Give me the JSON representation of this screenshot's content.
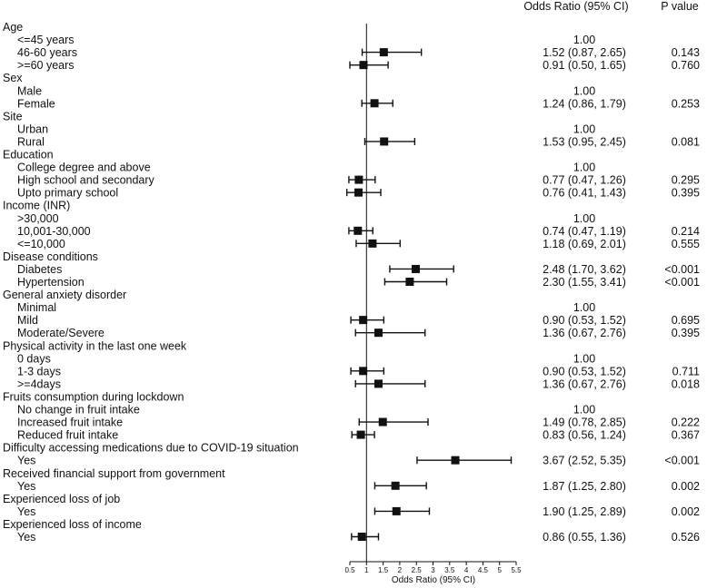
{
  "chart_data": {
    "type": "forest",
    "header_or": "Odds Ratio (95% CI)",
    "header_p": "P value",
    "xlabel": "Odds Ratio (95% CI)",
    "xlim": [
      0.5,
      5.5
    ],
    "xticks": [
      "0.5",
      "1",
      "1.5",
      "2",
      "2.5",
      "3",
      "3.5",
      "4",
      "4.5",
      "5",
      "5.5"
    ],
    "reference_line": 1,
    "rows": [
      {
        "label": "Age",
        "kind": "group"
      },
      {
        "label": "<=45 years",
        "kind": "item",
        "or_text": "1.00",
        "p": ""
      },
      {
        "label": "46-60 years",
        "kind": "item",
        "or": 1.52,
        "lo": 0.87,
        "hi": 2.65,
        "or_text": "1.52 (0.87, 2.65)",
        "p": "0.143"
      },
      {
        "label": ">=60 years",
        "kind": "item",
        "or": 0.91,
        "lo": 0.5,
        "hi": 1.65,
        "or_text": "0.91 (0.50, 1.65)",
        "p": "0.760"
      },
      {
        "label": "Sex",
        "kind": "group"
      },
      {
        "label": "Male",
        "kind": "item",
        "or_text": "1.00",
        "p": ""
      },
      {
        "label": "Female",
        "kind": "item",
        "or": 1.24,
        "lo": 0.86,
        "hi": 1.79,
        "or_text": "1.24 (0.86, 1.79)",
        "p": "0.253"
      },
      {
        "label": "Site",
        "kind": "group"
      },
      {
        "label": "Urban",
        "kind": "item",
        "or_text": "1.00",
        "p": ""
      },
      {
        "label": "Rural",
        "kind": "item",
        "or": 1.53,
        "lo": 0.95,
        "hi": 2.45,
        "or_text": "1.53 (0.95, 2.45)",
        "p": "0.081"
      },
      {
        "label": "Education",
        "kind": "group"
      },
      {
        "label": "College degree and above",
        "kind": "item",
        "or_text": "1.00",
        "p": ""
      },
      {
        "label": "High school and secondary",
        "kind": "item",
        "or": 0.77,
        "lo": 0.47,
        "hi": 1.26,
        "or_text": "0.77 (0.47, 1.26)",
        "p": "0.295"
      },
      {
        "label": "Upto primary school",
        "kind": "item",
        "or": 0.76,
        "lo": 0.41,
        "hi": 1.43,
        "or_text": "0.76 (0.41, 1.43)",
        "p": "0.395"
      },
      {
        "label": "Income (INR)",
        "kind": "group"
      },
      {
        "label": ">30,000",
        "kind": "item",
        "or_text": "1.00",
        "p": ""
      },
      {
        "label": "10,001-30,000",
        "kind": "item",
        "or": 0.74,
        "lo": 0.47,
        "hi": 1.19,
        "or_text": "0.74 (0.47, 1.19)",
        "p": "0.214"
      },
      {
        "label": "<=10,000",
        "kind": "item",
        "or": 1.18,
        "lo": 0.69,
        "hi": 2.01,
        "or_text": "1.18 (0.69, 2.01)",
        "p": "0.555"
      },
      {
        "label": "Disease conditions",
        "kind": "group"
      },
      {
        "label": "Diabetes",
        "kind": "item",
        "or": 2.48,
        "lo": 1.7,
        "hi": 3.62,
        "or_text": "2.48 (1.70, 3.62)",
        "p": "<0.001"
      },
      {
        "label": "Hypertension",
        "kind": "item",
        "or": 2.3,
        "lo": 1.55,
        "hi": 3.41,
        "or_text": "2.30 (1.55, 3.41)",
        "p": "<0.001"
      },
      {
        "label": "General anxiety disorder",
        "kind": "group"
      },
      {
        "label": "Minimal",
        "kind": "item",
        "or_text": "1.00",
        "p": ""
      },
      {
        "label": "Mild",
        "kind": "item",
        "or": 0.9,
        "lo": 0.53,
        "hi": 1.52,
        "or_text": "0.90 (0.53, 1.52)",
        "p": "0.695"
      },
      {
        "label": "Moderate/Severe",
        "kind": "item",
        "or": 1.36,
        "lo": 0.67,
        "hi": 2.76,
        "or_text": "1.36 (0.67, 2.76)",
        "p": "0.395"
      },
      {
        "label": "Physical activity in the last one week",
        "kind": "group"
      },
      {
        "label": "0 days",
        "kind": "item",
        "or_text": "1.00",
        "p": ""
      },
      {
        "label": "1-3 days",
        "kind": "item",
        "or": 0.9,
        "lo": 0.53,
        "hi": 1.52,
        "or_text": "0.90 (0.53, 1.52)",
        "p": "0.711"
      },
      {
        "label": ">=4days",
        "kind": "item",
        "or": 1.36,
        "lo": 0.67,
        "hi": 2.76,
        "or_text": "1.36 (0.67, 2.76)",
        "p": "0.018"
      },
      {
        "label": "Fruits consumption during lockdown",
        "kind": "group"
      },
      {
        "label": "No change in fruit intake",
        "kind": "item",
        "or_text": "1.00",
        "p": ""
      },
      {
        "label": "Increased fruit intake",
        "kind": "item",
        "or": 1.49,
        "lo": 0.78,
        "hi": 2.85,
        "or_text": "1.49 (0.78, 2.85)",
        "p": "0.222"
      },
      {
        "label": "Reduced fruit intake",
        "kind": "item",
        "or": 0.83,
        "lo": 0.56,
        "hi": 1.24,
        "or_text": "0.83 (0.56, 1.24)",
        "p": "0.367"
      },
      {
        "label": "Difficulty accessing medications due to COVID-19 situation",
        "kind": "group"
      },
      {
        "label": "Yes",
        "kind": "item",
        "or": 3.67,
        "lo": 2.52,
        "hi": 5.35,
        "or_text": "3.67 (2.52, 5.35)",
        "p": "<0.001"
      },
      {
        "label": "Received financial support from government",
        "kind": "group"
      },
      {
        "label": "Yes",
        "kind": "item",
        "or": 1.87,
        "lo": 1.25,
        "hi": 2.8,
        "or_text": "1.87 (1.25, 2.80)",
        "p": "0.002"
      },
      {
        "label": "Experienced loss of job",
        "kind": "group"
      },
      {
        "label": "Yes",
        "kind": "item",
        "or": 1.9,
        "lo": 1.25,
        "hi": 2.89,
        "or_text": "1.90 (1.25, 2.89)",
        "p": "0.002"
      },
      {
        "label": "Experienced loss of income",
        "kind": "group"
      },
      {
        "label": "Yes",
        "kind": "item",
        "or": 0.86,
        "lo": 0.55,
        "hi": 1.36,
        "or_text": "0.86 (0.55, 1.36)",
        "p": "0.526"
      }
    ]
  }
}
